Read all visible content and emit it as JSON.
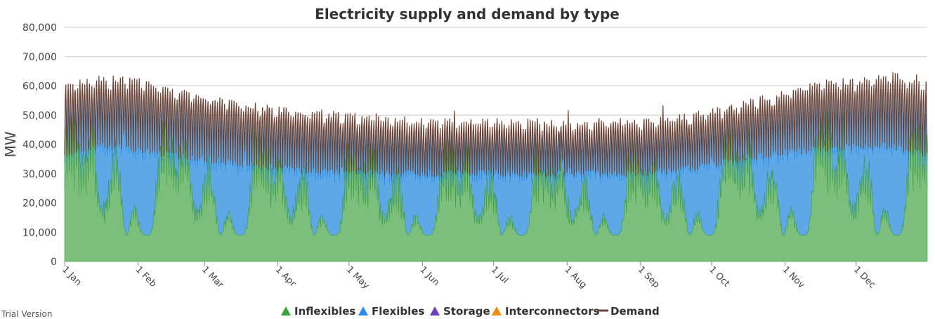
{
  "watermark": "Trial Version",
  "chart_data": {
    "type": "area",
    "title": "Electricity supply and demand by type",
    "xlabel": "",
    "ylabel": "MW",
    "ylim": [
      0,
      80000
    ],
    "yticks": [
      0,
      10000,
      20000,
      30000,
      40000,
      50000,
      60000,
      70000,
      80000
    ],
    "ytick_labels": [
      "0",
      "10,000",
      "20,000",
      "30,000",
      "40,000",
      "50,000",
      "60,000",
      "70,000",
      "80,000"
    ],
    "xlim": [
      1,
      365
    ],
    "x_unit": "day of year",
    "xtick_days": [
      1,
      32,
      60,
      91,
      121,
      152,
      182,
      213,
      244,
      274,
      305,
      335
    ],
    "xtick_labels": [
      "1 Jan",
      "1 Feb",
      "1 Mar",
      "1 Apr",
      "1 May",
      "1 Jun",
      "1 Jul",
      "1 Aug",
      "1 Sep",
      "1 Oct",
      "1 Nov",
      "1 Dec"
    ],
    "grid": true,
    "stacked": true,
    "legend_position": "bottom-center",
    "series": [
      {
        "name": "Inflexibles",
        "kind": "area",
        "color": "#7cbf7c",
        "stroke": "#3e9e3e",
        "legend_color": "#3aa33a",
        "approx_range": [
          6000,
          50000
        ]
      },
      {
        "name": "Flexibles",
        "kind": "area",
        "color": "#5ea8e8",
        "stroke": "#1a86e0",
        "legend_color": "#2a8ce6",
        "approx_range": [
          0,
          40000
        ]
      },
      {
        "name": "Storage",
        "kind": "area",
        "color": "#7d48c9",
        "stroke": "#6a33c0",
        "legend_color": "#6a3fc0",
        "approx_range": [
          0,
          3000
        ]
      },
      {
        "name": "Interconnectors",
        "kind": "area",
        "color": "#f0961e",
        "stroke": "#f08a10",
        "legend_color": "#f08a10",
        "approx_range": [
          0,
          2000
        ]
      },
      {
        "name": "Demand",
        "kind": "line",
        "color": "#6b4234",
        "legend_color": "#6b4234",
        "approx_range": [
          28000,
          70000
        ]
      }
    ],
    "monthly_envelope": {
      "days": [
        1,
        15,
        32,
        46,
        60,
        75,
        91,
        105,
        121,
        135,
        152,
        166,
        182,
        196,
        213,
        227,
        244,
        258,
        274,
        288,
        305,
        319,
        335,
        350,
        365
      ],
      "demand_peak": [
        61000,
        64000,
        63000,
        60000,
        58000,
        55000,
        53000,
        52000,
        51000,
        50000,
        49000,
        49000,
        49000,
        49000,
        48000,
        49000,
        49000,
        50000,
        52000,
        55000,
        59000,
        62000,
        63000,
        65000,
        62000
      ],
      "demand_trough": [
        35000,
        38000,
        37000,
        35000,
        34000,
        32000,
        31000,
        30000,
        30000,
        29000,
        29000,
        29000,
        29000,
        29000,
        29000,
        29000,
        29000,
        30000,
        32000,
        34000,
        36000,
        37000,
        38000,
        38000,
        35000
      ]
    }
  }
}
